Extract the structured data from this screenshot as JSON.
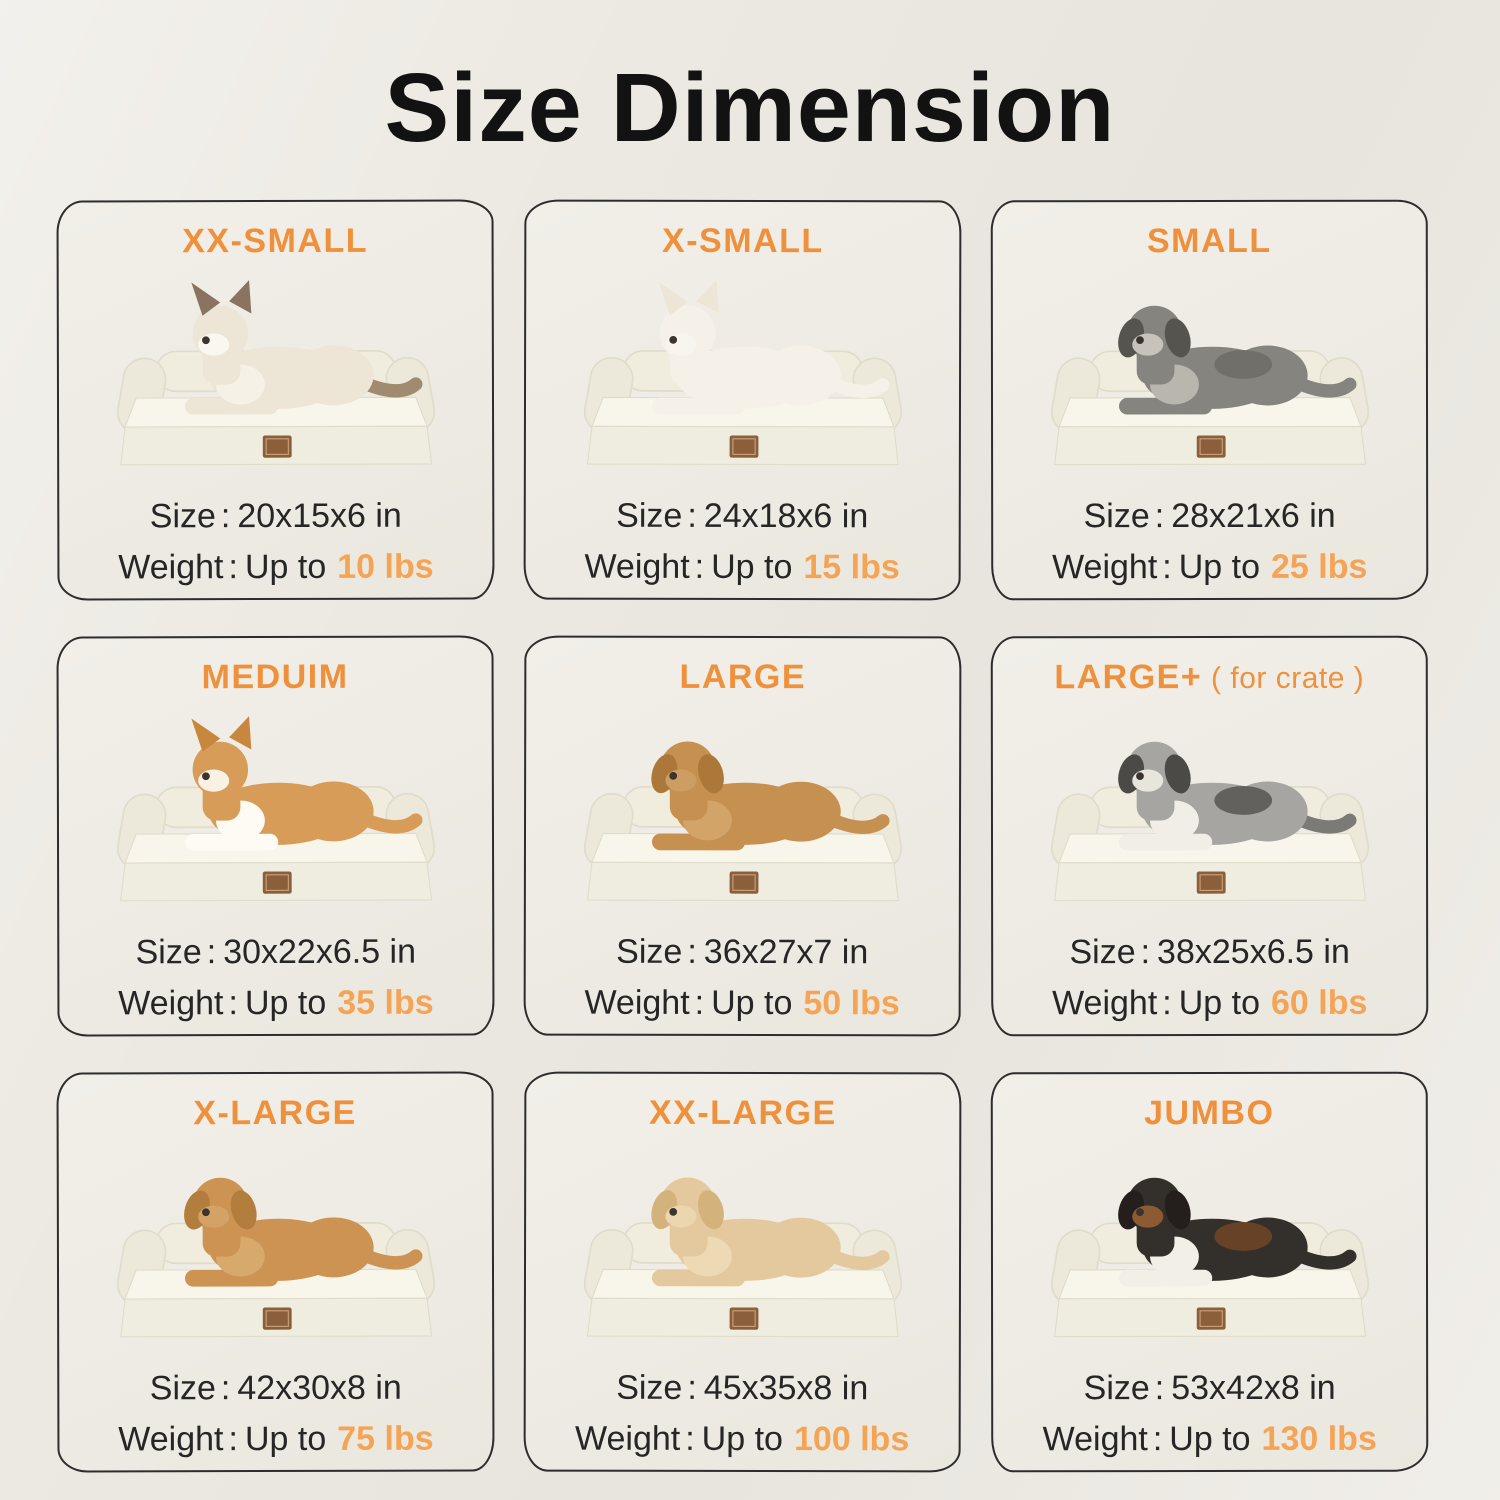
{
  "page": {
    "title": "Size Dimension",
    "background": "#ECE9E2",
    "accent": "#EF913C",
    "weight_accent": "#F5A456",
    "text_color": "#262626",
    "card_border": "#2D2D2D"
  },
  "labels": {
    "size": "Size",
    "weight": "Weight",
    "up_to": "Up to",
    "colon": ":"
  },
  "bed_colors": {
    "bolster": "#F0EDDF",
    "bolster_side": "#ECE9DA",
    "mattress": "#F8F6EA",
    "base": "#EFEDDF",
    "edge": "#DFDCCB",
    "tag": "#8B5E3C",
    "tag_stitch": "#C9A37A"
  },
  "cards": [
    {
      "label": "XX-SMALL",
      "suffix": "",
      "size_value": "20x15x6 in",
      "weight_value": "10 lbs",
      "pet": "ragdoll-cat",
      "pet_colors": {
        "body": "#EDE5D6",
        "ears": "pointed",
        "ear": "#8A7360",
        "muzzle": "#FAF7F0",
        "chest": "#F6F1E7",
        "patch": "",
        "legs": "",
        "tail": "#A08B70"
      }
    },
    {
      "label": "X-SMALL",
      "suffix": "",
      "size_value": "24x18x6 in",
      "weight_value": "15 lbs",
      "pet": "pomeranian-dog",
      "pet_colors": {
        "body": "#F5F1E8",
        "ears": "pointed",
        "ear": "#EDE6D6",
        "muzzle": "#F8F5EE",
        "chest": "",
        "patch": "",
        "legs": "",
        "tail": ""
      }
    },
    {
      "label": "SMALL",
      "suffix": "",
      "size_value": "28x21x6 in",
      "weight_value": "25 lbs",
      "pet": "schnauzer-dog",
      "pet_colors": {
        "body": "#85847F",
        "ears": "floppy",
        "ear": "#55544F",
        "muzzle": "#C6C3BA",
        "chest": "#B9B6AD",
        "patch": "#6E6D68",
        "legs": "",
        "tail": ""
      }
    },
    {
      "label": "MEDUIM",
      "suffix": "",
      "size_value": "30x22x6.5 in",
      "weight_value": "35 lbs",
      "pet": "corgi-dog",
      "pet_colors": {
        "body": "#D89C59",
        "ears": "pointed",
        "ear": "#C8873E",
        "muzzle": "#F8F1E4",
        "chest": "#FDFBF4",
        "patch": "",
        "legs": "#FDFBF4",
        "tail": ""
      }
    },
    {
      "label": "LARGE",
      "suffix": "",
      "size_value": "36x27x7 in",
      "weight_value": "50 lbs",
      "pet": "golden-retriever-dog",
      "pet_colors": {
        "body": "#C69050",
        "ears": "floppy",
        "ear": "#AC783A",
        "muzzle": "#CE9D62",
        "chest": "#D3A468",
        "patch": "",
        "legs": "",
        "tail": ""
      }
    },
    {
      "label": "LARGE+",
      "suffix": " ( for crate )",
      "size_value": "38x25x6.5 in",
      "weight_value": "60 lbs",
      "pet": "australian-shepherd-dog",
      "pet_colors": {
        "body": "#A6A5A2",
        "ears": "floppy",
        "ear": "#4B4A47",
        "muzzle": "#E8E5DD",
        "chest": "#F0EEE7",
        "patch": "#5B5A55",
        "legs": "#F0EEE7",
        "tail": "#7B7A76"
      }
    },
    {
      "label": "X-LARGE",
      "suffix": "",
      "size_value": "42x30x8 in",
      "weight_value": "75 lbs",
      "pet": "golden-retriever-dog",
      "pet_colors": {
        "body": "#CC9352",
        "ears": "floppy",
        "ear": "#B27D3D",
        "muzzle": "#D4A266",
        "chest": "#D8A96C",
        "patch": "",
        "legs": "",
        "tail": ""
      }
    },
    {
      "label": "XX-LARGE",
      "suffix": "",
      "size_value": "45x35x8 in",
      "weight_value": "100 lbs",
      "pet": "labrador-dog",
      "pet_colors": {
        "body": "#E4C99E",
        "ears": "floppy",
        "ear": "#D3B27C",
        "muzzle": "#EBD6B0",
        "chest": "#EDD9B4",
        "patch": "",
        "legs": "",
        "tail": ""
      }
    },
    {
      "label": "JUMBO",
      "suffix": "",
      "size_value": "53x42x8 in",
      "weight_value": "130 lbs",
      "pet": "bernese-mountain-dog",
      "pet_colors": {
        "body": "#332F2B",
        "ears": "floppy",
        "ear": "#241F1C",
        "muzzle": "#8C5A33",
        "chest": "#F2EFE7",
        "patch": "#6E4526",
        "legs": "#F2EFE7",
        "tail": ""
      }
    }
  ]
}
